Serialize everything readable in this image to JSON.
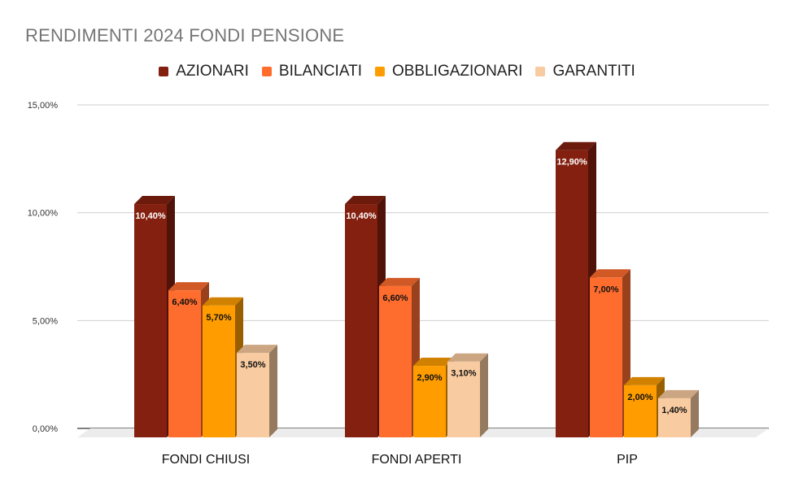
{
  "chart_data": {
    "type": "bar",
    "title": "RENDIMENTI 2024 FONDI PENSIONE",
    "categories": [
      "FONDI CHIUSI",
      "FONDI APERTI",
      "PIP"
    ],
    "series": [
      {
        "name": "AZIONARI",
        "values": [
          10.4,
          10.4,
          12.9
        ],
        "labels": [
          "10,40%",
          "10,40%",
          "12,90%"
        ],
        "color": "#83200F",
        "label_color": "#ffffff"
      },
      {
        "name": "BILANCIATI",
        "values": [
          6.4,
          6.6,
          7.0
        ],
        "labels": [
          "6,40%",
          "6,60%",
          "7,00%"
        ],
        "color": "#FF6D2E",
        "label_color": "#111111"
      },
      {
        "name": "OBBLIGAZIONARI",
        "values": [
          5.7,
          2.9,
          2.0
        ],
        "labels": [
          "5,70%",
          "2,90%",
          "2,00%"
        ],
        "color": "#FF9D00",
        "label_color": "#111111"
      },
      {
        "name": "GARANTITI",
        "values": [
          3.5,
          3.1,
          1.4
        ],
        "labels": [
          "3,50%",
          "3,10%",
          "1,40%"
        ],
        "color": "#F9CBA0",
        "label_color": "#111111"
      }
    ],
    "yticks": [
      0,
      5,
      10,
      15
    ],
    "ytick_labels": [
      "0,00%",
      "5,00%",
      "10,00%",
      "15,00%"
    ],
    "ylim": [
      0,
      15
    ],
    "grid": true,
    "legend_position": "top-center",
    "three_d": true
  }
}
